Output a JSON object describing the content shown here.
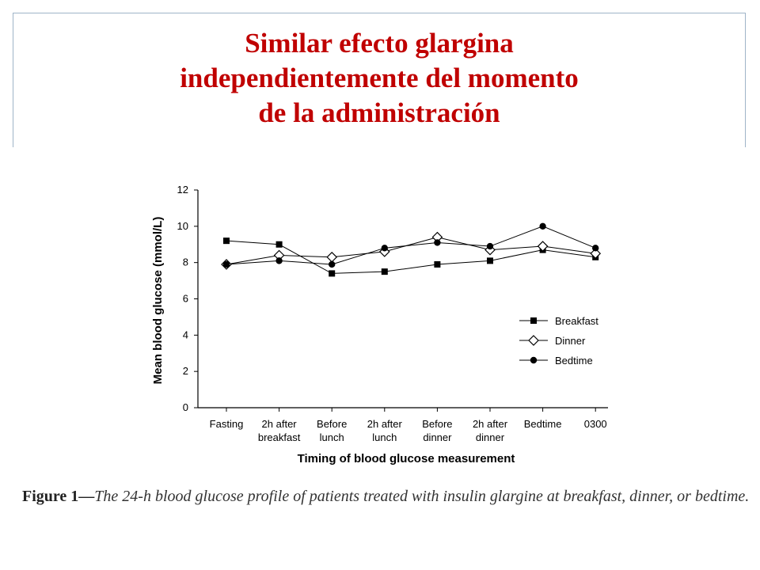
{
  "slide": {
    "title_lines": [
      "Similar efecto glargina",
      "independientemente del momento",
      "de la administración"
    ]
  },
  "caption": {
    "lead": "Figure 1—",
    "text": "The 24-h blood glucose profile of patients treated with insulin glargine at breakfast, dinner, or bedtime."
  },
  "chart_data": {
    "type": "line",
    "categories": [
      [
        "Fasting"
      ],
      [
        "2h after",
        "breakfast"
      ],
      [
        "Before",
        "lunch"
      ],
      [
        "2h after",
        "lunch"
      ],
      [
        "Before",
        "dinner"
      ],
      [
        "2h after",
        "dinner"
      ],
      [
        "Bedtime"
      ],
      [
        "0300"
      ]
    ],
    "series": [
      {
        "name": "Breakfast",
        "marker": "square",
        "values": [
          9.2,
          9.0,
          7.4,
          7.5,
          7.9,
          8.1,
          8.7,
          8.3
        ]
      },
      {
        "name": "Dinner",
        "marker": "diamond",
        "values": [
          7.9,
          8.4,
          8.3,
          8.6,
          9.4,
          8.7,
          8.9,
          8.5
        ]
      },
      {
        "name": "Bedtime",
        "marker": "circle",
        "values": [
          7.9,
          8.1,
          7.9,
          8.8,
          9.1,
          8.9,
          10.0,
          8.8
        ]
      }
    ],
    "xlabel": "Timing of blood glucose measurement",
    "ylabel": "Mean blood glucose (mmol/L)",
    "ylim": [
      0,
      12
    ],
    "yticks": [
      "0",
      "2",
      "4",
      "6",
      "8",
      "10",
      "12"
    ],
    "legend_position": "right"
  }
}
